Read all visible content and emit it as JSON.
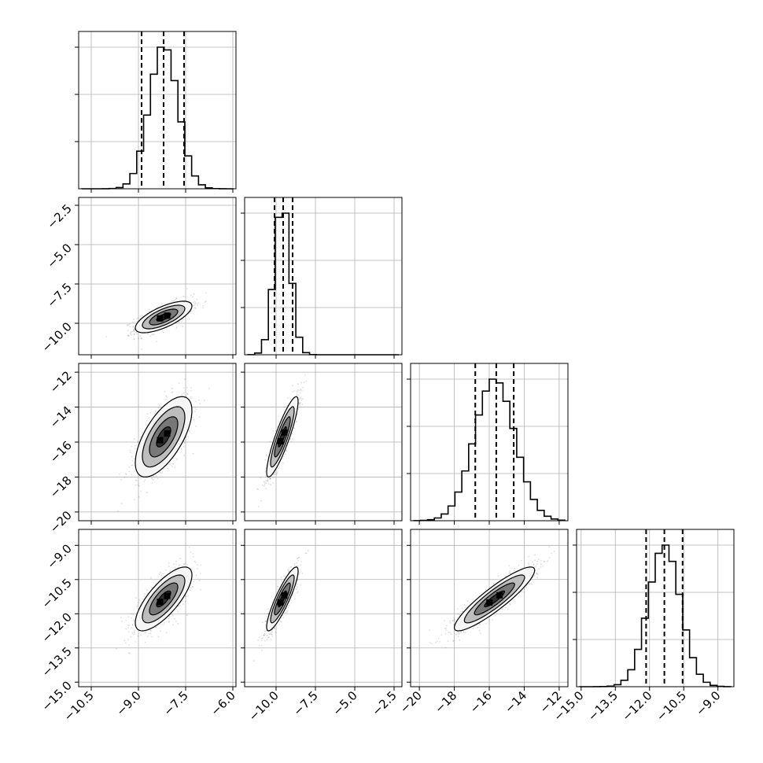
{
  "chart_data": {
    "type": "corner",
    "parameters": [
      {
        "index": 0,
        "range": [
          -10.9,
          -5.9
        ],
        "ticks": [
          -10.5,
          -9.0,
          -7.5,
          -6.0
        ],
        "tick_labels": [
          "−10.5",
          "−9.0",
          "−7.5",
          "−6.0"
        ],
        "mean": -8.2,
        "std": 0.45,
        "quantiles": [
          -8.9,
          -8.2,
          -7.55
        ],
        "hist_peak": 1.0
      },
      {
        "index": 1,
        "range": [
          -12.0,
          -2.0
        ],
        "ticks": [
          -10.0,
          -7.5,
          -5.0,
          -2.5
        ],
        "tick_labels": [
          "−10.0",
          "−7.5",
          "−5.0",
          "−2.5"
        ],
        "mean": -9.6,
        "std": 0.5,
        "quantiles": [
          -10.1,
          -9.55,
          -8.95
        ],
        "hist_peak": 1.0
      },
      {
        "index": 2,
        "range": [
          -20.5,
          -11.5
        ],
        "ticks": [
          -20,
          -18,
          -16,
          -14,
          -12
        ],
        "tick_labels": [
          "−20",
          "−18",
          "−16",
          "−14",
          "−12"
        ],
        "mean": -15.7,
        "std": 1.15,
        "quantiles": [
          -16.8,
          -15.6,
          -14.6
        ],
        "hist_peak": 1.0
      },
      {
        "index": 3,
        "range": [
          -15.2,
          -8.3
        ],
        "ticks": [
          -15.0,
          -13.5,
          -12.0,
          -10.5,
          -9.0
        ],
        "tick_labels": [
          "−15.0",
          "−13.5",
          "−12.0",
          "−10.5",
          "−9.0"
        ],
        "mean": -11.35,
        "std": 0.7,
        "quantiles": [
          -12.15,
          -11.35,
          -10.55
        ],
        "hist_peak": 1.0
      }
    ],
    "correlations": {
      "1_0": 0.7,
      "2_0": 0.65,
      "2_1": 0.88,
      "3_0": 0.75,
      "3_1": 0.88,
      "3_2": 0.9
    },
    "contour_levels": [
      "0.5 sigma",
      "1 sigma",
      "1.5 sigma",
      "2 sigma"
    ],
    "grid": true
  }
}
